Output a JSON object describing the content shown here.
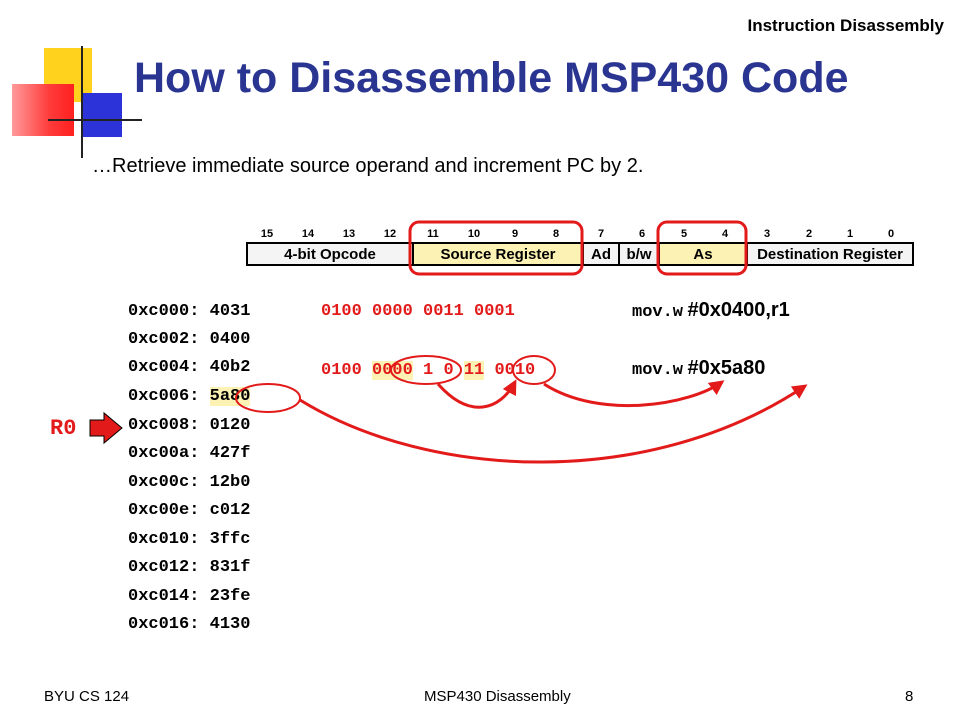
{
  "header": {
    "topic": "Instruction Disassembly",
    "title": "How to Disassemble MSP430 Code",
    "subtitle": "…Retrieve immediate source operand and increment PC by 2."
  },
  "bit_diagram": {
    "bit_numbers": [
      "15",
      "14",
      "13",
      "12",
      "11",
      "10",
      "9",
      "8",
      "7",
      "6",
      "5",
      "4",
      "3",
      "2",
      "1",
      "0"
    ],
    "fields": [
      {
        "label": "4-bit Opcode"
      },
      {
        "label": "Source Register"
      },
      {
        "label": "Ad"
      },
      {
        "label": "b/w"
      },
      {
        "label": "As"
      },
      {
        "label": "Destination Register"
      }
    ]
  },
  "memory": [
    {
      "addr": "0xc000:",
      "value": "4031"
    },
    {
      "addr": "0xc002:",
      "value": "0400"
    },
    {
      "addr": "0xc004:",
      "value": "40b2"
    },
    {
      "addr": "0xc006:",
      "value": "5a80"
    },
    {
      "addr": "0xc008:",
      "value": "0120"
    },
    {
      "addr": "0xc00a:",
      "value": "427f"
    },
    {
      "addr": "0xc00c:",
      "value": "12b0"
    },
    {
      "addr": "0xc00e:",
      "value": "c012"
    },
    {
      "addr": "0xc010:",
      "value": "3ffc"
    },
    {
      "addr": "0xc012:",
      "value": "831f"
    },
    {
      "addr": "0xc014:",
      "value": "23fe"
    },
    {
      "addr": "0xc016:",
      "value": "4130"
    }
  ],
  "decode": {
    "line1": {
      "binary": "0100 0000 0011 0001",
      "mnemonic": "mov.w",
      "operand": "#0x0400,r1"
    },
    "line2": {
      "opcode": "0100",
      "src": "0000",
      "ad": "1",
      "bw": "0",
      "as": "11",
      "dst": "0010",
      "mnemonic": "mov.w",
      "operand": "#0x5a80"
    }
  },
  "pointer": {
    "label": "R0"
  },
  "footer": {
    "left": "BYU CS 124",
    "center": "MSP430 Disassembly",
    "page": "8"
  },
  "colors": {
    "title": "#2a3592",
    "accent": "#e31a1a",
    "highlight": "#fbf2b4"
  }
}
